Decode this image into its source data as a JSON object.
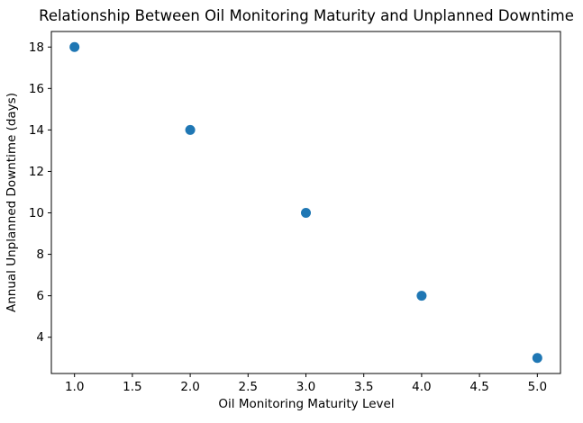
{
  "chart_data": {
    "type": "scatter",
    "title": "Relationship Between Oil Monitoring Maturity and Unplanned Downtime",
    "xlabel": "Oil Monitoring Maturity Level",
    "ylabel": "Annual Unplanned Downtime (days)",
    "x": [
      1,
      2,
      3,
      4,
      5
    ],
    "y": [
      18,
      14,
      10,
      6,
      3
    ],
    "xlim": [
      0.8,
      5.2
    ],
    "ylim": [
      2.25,
      18.75
    ],
    "x_ticks": [
      1.0,
      1.5,
      2.0,
      2.5,
      3.0,
      3.5,
      4.0,
      4.5,
      5.0
    ],
    "x_tick_labels": [
      "1.0",
      "1.5",
      "2.0",
      "2.5",
      "3.0",
      "3.5",
      "4.0",
      "4.5",
      "5.0"
    ],
    "y_ticks": [
      4,
      6,
      8,
      10,
      12,
      14,
      16,
      18
    ],
    "y_tick_labels": [
      "4",
      "6",
      "8",
      "10",
      "12",
      "14",
      "16",
      "18"
    ],
    "point_color": "#1f77b4",
    "frame_color": "#000000",
    "background": "#ffffff",
    "grid": false,
    "legend": "none"
  }
}
